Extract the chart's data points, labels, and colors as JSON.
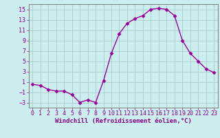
{
  "x": [
    0,
    1,
    2,
    3,
    4,
    5,
    6,
    7,
    8,
    9,
    10,
    11,
    12,
    13,
    14,
    15,
    16,
    17,
    18,
    19,
    20,
    21,
    22,
    23
  ],
  "y": [
    0.5,
    0.3,
    -0.5,
    -0.8,
    -0.8,
    -1.5,
    -3.0,
    -2.5,
    -3.0,
    1.2,
    6.5,
    10.3,
    12.3,
    13.2,
    13.8,
    15.0,
    15.2,
    15.0,
    13.8,
    9.0,
    6.5,
    5.0,
    3.5,
    2.8
  ],
  "line_color": "#990099",
  "marker": "D",
  "markersize": 2.5,
  "linewidth": 1.0,
  "bg_color": "#cceeee",
  "grid_color": "#aacccc",
  "tick_color": "#880088",
  "label_color": "#880088",
  "xlabel": "Windchill (Refroidissement éolien,°C)",
  "xlabel_fontsize": 6.5,
  "tick_fontsize": 6,
  "ylim": [
    -4,
    16
  ],
  "yticks": [
    -3,
    -1,
    1,
    3,
    5,
    7,
    9,
    11,
    13,
    15
  ],
  "xticks": [
    0,
    1,
    2,
    3,
    4,
    5,
    6,
    7,
    8,
    9,
    10,
    11,
    12,
    13,
    14,
    15,
    16,
    17,
    18,
    19,
    20,
    21,
    22,
    23
  ],
  "xlim": [
    -0.5,
    23.5
  ]
}
